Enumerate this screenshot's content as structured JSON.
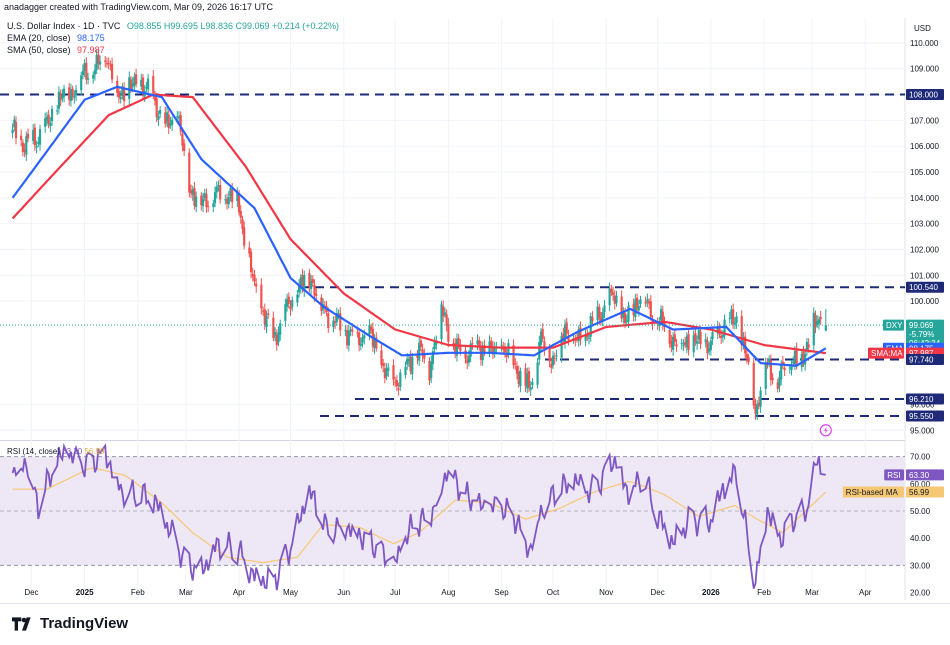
{
  "header": {
    "created": "anadagger created with TradingView.com, Mar 09, 2026 16:17 UTC",
    "symbol": "U.S. Dollar Index · 1D · TVC",
    "ohlc": "O98.855 H99.695 L98.836 C99.069 +0.214 (+0.22%)",
    "ema_label": "EMA (20, close)",
    "ema_value": "98.175",
    "sma_label": "SMA (50, close)",
    "sma_value": "97.987"
  },
  "currency": "USD",
  "rsi_legend": {
    "label": "RSI (14, close)",
    "value1": "63.30",
    "value2": "56.99"
  },
  "footer": {
    "brand": "TradingView"
  },
  "colors": {
    "up": "#26a69a",
    "down": "#ef5350",
    "ema": "#2962ff",
    "sma": "#f23645",
    "hline": "#1e2a78",
    "rsi": "#7e57c2",
    "rsi_ma": "#f7c873",
    "rsi_band": "#ede7f6"
  },
  "chart_data": [
    {
      "type": "candlestick",
      "title": "U.S. Dollar Index · 1D · TVC",
      "ylim": [
        94.7,
        110.5
      ],
      "y_ticks": [
        "110.000",
        "109.000",
        "108.000",
        "107.000",
        "106.000",
        "105.000",
        "104.000",
        "103.000",
        "102.000",
        "101.000",
        "100.000",
        "96.000",
        "95.000"
      ],
      "x_ticks": [
        "Dec",
        "2025",
        "Feb",
        "Mar",
        "Apr",
        "May",
        "Jun",
        "Jul",
        "Aug",
        "Sep",
        "Oct",
        "Nov",
        "Dec",
        "2026",
        "Feb",
        "Mar",
        "Apr"
      ],
      "close_path": [
        [
          "2024-11-20",
          106.6
        ],
        [
          "2024-11-27",
          106.0
        ],
        [
          "2024-12-04",
          106.3
        ],
        [
          "2024-12-11",
          106.9
        ],
        [
          "2024-12-18",
          107.9
        ],
        [
          "2024-12-25",
          108.1
        ],
        [
          "2025-01-01",
          108.9
        ],
        [
          "2025-01-08",
          109.0
        ],
        [
          "2025-01-13",
          109.7
        ],
        [
          "2025-01-20",
          108.0
        ],
        [
          "2025-01-27",
          108.3
        ],
        [
          "2025-02-03",
          108.4
        ],
        [
          "2025-02-10",
          107.9
        ],
        [
          "2025-02-17",
          106.7
        ],
        [
          "2025-02-24",
          107.3
        ],
        [
          "2025-03-03",
          104.4
        ],
        [
          "2025-03-10",
          103.8
        ],
        [
          "2025-03-17",
          104.1
        ],
        [
          "2025-03-24",
          104.2
        ],
        [
          "2025-04-01",
          103.8
        ],
        [
          "2025-04-04",
          102.3
        ],
        [
          "2025-04-11",
          100.3
        ],
        [
          "2025-04-21",
          98.5
        ],
        [
          "2025-04-28",
          99.6
        ],
        [
          "2025-05-05",
          100.4
        ],
        [
          "2025-05-12",
          101.0
        ],
        [
          "2025-05-19",
          99.8
        ],
        [
          "2025-05-26",
          99.3
        ],
        [
          "2025-06-02",
          98.9
        ],
        [
          "2025-06-09",
          98.5
        ],
        [
          "2025-06-16",
          98.8
        ],
        [
          "2025-06-23",
          97.5
        ],
        [
          "2025-06-30",
          96.8
        ],
        [
          "2025-07-07",
          97.3
        ],
        [
          "2025-07-14",
          98.2
        ],
        [
          "2025-07-21",
          97.4
        ],
        [
          "2025-07-28",
          99.8
        ],
        [
          "2025-08-04",
          98.2
        ],
        [
          "2025-08-11",
          97.9
        ],
        [
          "2025-08-18",
          98.3
        ],
        [
          "2025-08-25",
          98.0
        ],
        [
          "2025-09-01",
          98.2
        ],
        [
          "2025-09-08",
          97.6
        ],
        [
          "2025-09-17",
          96.6
        ],
        [
          "2025-09-24",
          98.5
        ],
        [
          "2025-10-01",
          97.7
        ],
        [
          "2025-10-08",
          98.9
        ],
        [
          "2025-10-15",
          98.4
        ],
        [
          "2025-10-22",
          98.9
        ],
        [
          "2025-10-29",
          99.6
        ],
        [
          "2025-11-05",
          100.2
        ],
        [
          "2025-11-12",
          99.2
        ],
        [
          "2025-11-21",
          100.2
        ],
        [
          "2025-11-28",
          99.5
        ],
        [
          "2025-12-05",
          99.0
        ],
        [
          "2025-12-12",
          98.3
        ],
        [
          "2025-12-19",
          98.5
        ],
        [
          "2026-01-01",
          98.3
        ],
        [
          "2026-01-08",
          99.0
        ],
        [
          "2026-01-16",
          99.3
        ],
        [
          "2026-01-23",
          97.5
        ],
        [
          "2026-01-27",
          95.7
        ],
        [
          "2026-02-02",
          97.6
        ],
        [
          "2026-02-09",
          96.9
        ],
        [
          "2026-02-16",
          97.8
        ],
        [
          "2026-02-23",
          97.7
        ],
        [
          "2026-03-02",
          99.1
        ],
        [
          "2026-03-09",
          99.069
        ]
      ],
      "ema20_path": [
        [
          "2024-11-20",
          104.0
        ],
        [
          "2024-12-10",
          105.8
        ],
        [
          "2025-01-01",
          107.8
        ],
        [
          "2025-01-20",
          108.3
        ],
        [
          "2025-02-15",
          107.9
        ],
        [
          "2025-03-10",
          105.5
        ],
        [
          "2025-04-10",
          103.6
        ],
        [
          "2025-05-01",
          100.9
        ],
        [
          "2025-05-20",
          99.8
        ],
        [
          "2025-06-15",
          98.7
        ],
        [
          "2025-07-05",
          97.9
        ],
        [
          "2025-08-01",
          98.0
        ],
        [
          "2025-08-25",
          98.0
        ],
        [
          "2025-09-20",
          97.9
        ],
        [
          "2025-10-15",
          98.8
        ],
        [
          "2025-11-15",
          99.7
        ],
        [
          "2025-12-10",
          98.9
        ],
        [
          "2026-01-10",
          99.0
        ],
        [
          "2026-01-30",
          97.6
        ],
        [
          "2026-02-20",
          97.5
        ],
        [
          "2026-03-09",
          98.175
        ]
      ],
      "sma50_path": [
        [
          "2024-11-20",
          103.2
        ],
        [
          "2024-12-15",
          105.0
        ],
        [
          "2025-01-15",
          107.2
        ],
        [
          "2025-02-10",
          108.0
        ],
        [
          "2025-03-05",
          107.9
        ],
        [
          "2025-04-05",
          105.2
        ],
        [
          "2025-05-01",
          102.4
        ],
        [
          "2025-06-01",
          100.3
        ],
        [
          "2025-07-01",
          98.9
        ],
        [
          "2025-08-01",
          98.3
        ],
        [
          "2025-09-01",
          98.2
        ],
        [
          "2025-10-01",
          98.2
        ],
        [
          "2025-11-01",
          99.0
        ],
        [
          "2025-12-05",
          99.2
        ],
        [
          "2026-01-01",
          98.9
        ],
        [
          "2026-02-01",
          98.3
        ],
        [
          "2026-03-09",
          97.987
        ]
      ],
      "horizontal_levels": [
        108.0,
        100.54,
        97.74,
        96.21,
        95.55
      ],
      "price_labels": [
        {
          "text": "108.000",
          "value": 108.0
        },
        {
          "text": "100.540",
          "value": 100.54
        },
        {
          "text": "99.069",
          "value": 99.069,
          "extra": [
            "-5.79%",
            "06:42:34"
          ],
          "tag": "DXY",
          "color": "#26a69a"
        },
        {
          "text": "98.175",
          "value": 98.175,
          "tag": "EMA",
          "color": "#2962ff"
        },
        {
          "text": "97.987",
          "value": 97.987,
          "tag": "SMA:MA",
          "color": "#f23645"
        },
        {
          "text": "97.740",
          "value": 97.74
        },
        {
          "text": "96.210",
          "value": 96.21
        },
        {
          "text": "95.550",
          "value": 95.55
        }
      ]
    },
    {
      "type": "line",
      "title": "RSI (14, close)",
      "ylim": [
        18,
        75
      ],
      "y_ticks": [
        "70.00",
        "60.00",
        "50.00",
        "40.00",
        "30.00",
        "20.00"
      ],
      "bands": [
        30,
        70
      ],
      "rsi_path": [
        [
          "2024-11-20",
          64
        ],
        [
          "2024-11-28",
          69
        ],
        [
          "2024-12-05",
          52
        ],
        [
          "2024-12-12",
          63
        ],
        [
          "2024-12-20",
          71
        ],
        [
          "2025-01-01",
          66
        ],
        [
          "2025-01-13",
          72
        ],
        [
          "2025-01-22",
          58
        ],
        [
          "2025-02-03",
          56
        ],
        [
          "2025-02-12",
          52
        ],
        [
          "2025-02-20",
          42
        ],
        [
          "2025-03-01",
          31
        ],
        [
          "2025-03-10",
          28
        ],
        [
          "2025-03-20",
          38
        ],
        [
          "2025-04-01",
          35
        ],
        [
          "2025-04-10",
          26
        ],
        [
          "2025-04-21",
          24
        ],
        [
          "2025-05-01",
          36
        ],
        [
          "2025-05-12",
          57
        ],
        [
          "2025-05-22",
          43
        ],
        [
          "2025-06-02",
          45
        ],
        [
          "2025-06-15",
          40
        ],
        [
          "2025-06-30",
          29
        ],
        [
          "2025-07-10",
          43
        ],
        [
          "2025-07-23",
          50
        ],
        [
          "2025-08-01",
          67
        ],
        [
          "2025-08-10",
          56
        ],
        [
          "2025-08-20",
          51
        ],
        [
          "2025-09-01",
          51
        ],
        [
          "2025-09-10",
          47
        ],
        [
          "2025-09-17",
          36
        ],
        [
          "2025-09-25",
          52
        ],
        [
          "2025-10-05",
          58
        ],
        [
          "2025-10-15",
          60
        ],
        [
          "2025-10-22",
          56
        ],
        [
          "2025-10-30",
          62
        ],
        [
          "2025-11-05",
          70
        ],
        [
          "2025-11-15",
          56
        ],
        [
          "2025-11-22",
          64
        ],
        [
          "2025-12-01",
          48
        ],
        [
          "2025-12-10",
          38
        ],
        [
          "2025-12-20",
          47
        ],
        [
          "2026-01-01",
          46
        ],
        [
          "2026-01-08",
          58
        ],
        [
          "2026-01-16",
          64
        ],
        [
          "2026-01-22",
          41
        ],
        [
          "2026-01-27",
          24
        ],
        [
          "2026-02-03",
          51
        ],
        [
          "2026-02-10",
          40
        ],
        [
          "2026-02-18",
          47
        ],
        [
          "2026-02-26",
          49
        ],
        [
          "2026-03-03",
          67
        ],
        [
          "2026-03-09",
          63.3
        ]
      ],
      "rsi_ma_path": [
        [
          "2024-11-20",
          58
        ],
        [
          "2024-12-10",
          58
        ],
        [
          "2025-01-05",
          66
        ],
        [
          "2025-01-25",
          63
        ],
        [
          "2025-02-15",
          53
        ],
        [
          "2025-03-05",
          42
        ],
        [
          "2025-03-25",
          33
        ],
        [
          "2025-04-15",
          31
        ],
        [
          "2025-05-05",
          33
        ],
        [
          "2025-05-20",
          45
        ],
        [
          "2025-06-10",
          44
        ],
        [
          "2025-06-30",
          38
        ],
        [
          "2025-07-15",
          42
        ],
        [
          "2025-08-05",
          54
        ],
        [
          "2025-08-25",
          53
        ],
        [
          "2025-09-15",
          47
        ],
        [
          "2025-10-05",
          51
        ],
        [
          "2025-10-25",
          57
        ],
        [
          "2025-11-15",
          61
        ],
        [
          "2025-12-05",
          56
        ],
        [
          "2025-12-25",
          48
        ],
        [
          "2026-01-15",
          52
        ],
        [
          "2026-01-28",
          47
        ],
        [
          "2026-02-12",
          42
        ],
        [
          "2026-03-09",
          56.99
        ]
      ],
      "price_labels": [
        {
          "text": "63.30",
          "value": 63.3,
          "tag": "RSI",
          "color": "#7e57c2"
        },
        {
          "text": "56.99",
          "value": 56.99,
          "tag": "RSI-based MA",
          "color": "#f7c873"
        }
      ]
    }
  ]
}
